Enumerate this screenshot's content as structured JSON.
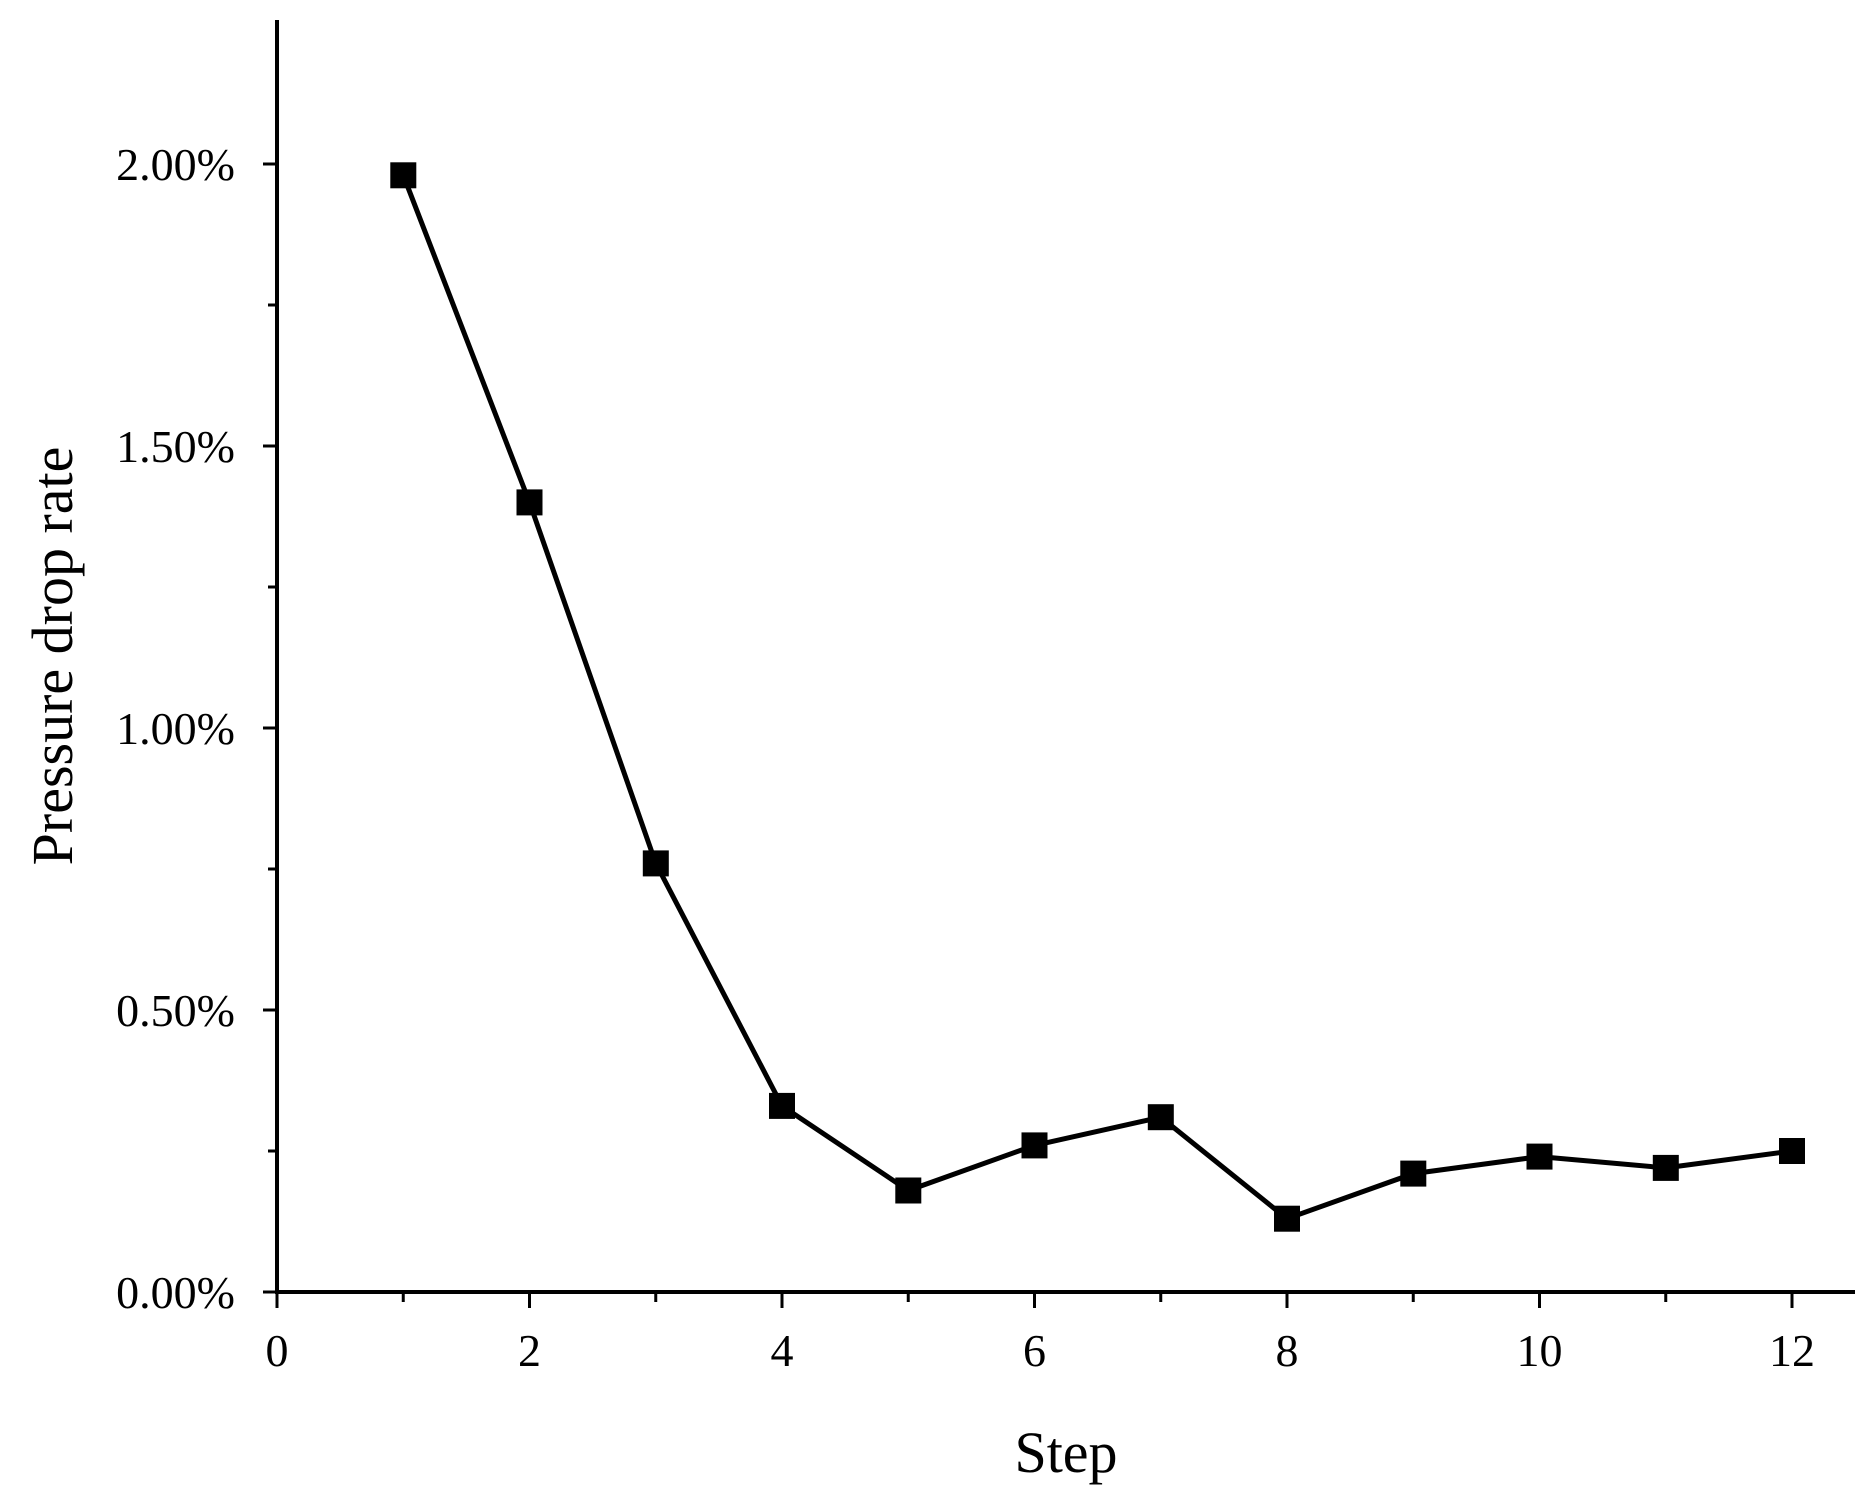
{
  "chart_data": {
    "type": "line",
    "title": "",
    "xlabel": "Step",
    "ylabel": "Pressure drop rate",
    "xlim": [
      0,
      12.5
    ],
    "ylim": [
      0,
      0.0225
    ],
    "x_ticks": [
      0,
      2,
      4,
      6,
      8,
      10,
      12
    ],
    "x_tick_labels": [
      "0",
      "2",
      "4",
      "6",
      "8",
      "10",
      "12"
    ],
    "x_minor_ticks": [
      1,
      3,
      5,
      7,
      9,
      11
    ],
    "y_ticks": [
      0,
      0.005,
      0.01,
      0.015,
      0.02
    ],
    "y_tick_labels": [
      "0.00%",
      "0.50%",
      "1.00%",
      "1.50%",
      "2.00%"
    ],
    "y_minor_ticks": [
      0.0025,
      0.0075,
      0.0125,
      0.0175
    ],
    "grid": false,
    "legend": "none",
    "series": [
      {
        "marker": "square",
        "color": "#000000",
        "x": [
          1,
          2,
          3,
          4,
          5,
          6,
          7,
          8,
          9,
          10,
          11,
          12
        ],
        "y": [
          0.0198,
          0.014,
          0.0076,
          0.0033,
          0.0018,
          0.0026,
          0.0031,
          0.0013,
          0.0021,
          0.0024,
          0.0022,
          0.0025
        ]
      }
    ]
  }
}
